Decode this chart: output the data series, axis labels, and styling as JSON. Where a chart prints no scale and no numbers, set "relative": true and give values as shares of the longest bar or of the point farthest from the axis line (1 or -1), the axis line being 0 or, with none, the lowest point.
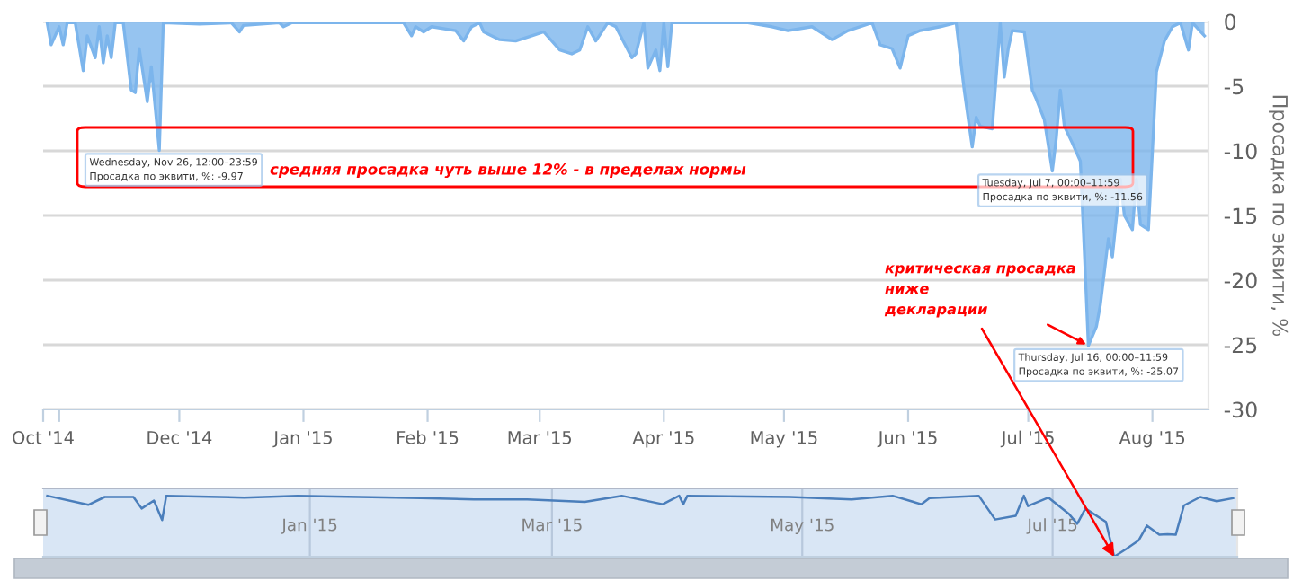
{
  "chart_data": [
    {
      "type": "area",
      "ylabel": "Просадка по эквити, %",
      "xlim": [
        "2014-10-28",
        "2015-08-15"
      ],
      "ylim": [
        -30,
        0
      ],
      "yticks": [
        0,
        -5,
        -10,
        -15,
        -20,
        -25,
        -30
      ],
      "xticks": [
        {
          "value": "2014-10-28",
          "label": "Oct '14"
        },
        {
          "value": "2014-11-01",
          "label": null
        },
        {
          "value": "2014-12-01",
          "label": "Dec '14"
        },
        {
          "value": "2015-01-01",
          "label": "Jan '15"
        },
        {
          "value": "2015-02-01",
          "label": "Feb '15"
        },
        {
          "value": "2015-03-01",
          "label": "Mar '15"
        },
        {
          "value": "2015-04-01",
          "label": "Apr '15"
        },
        {
          "value": "2015-05-01",
          "label": "May '15"
        },
        {
          "value": "2015-06-01",
          "label": "Jun '15"
        },
        {
          "value": "2015-07-01",
          "label": "Jul '15"
        },
        {
          "value": "2015-08-01",
          "label": "Aug '15"
        }
      ],
      "grid": "y",
      "x": [
        "2014-10-29",
        "2014-10-30",
        "2014-11-01",
        "2014-11-02",
        "2014-11-03",
        "2014-11-05",
        "2014-11-07",
        "2014-11-08",
        "2014-11-10",
        "2014-11-11",
        "2014-11-12",
        "2014-11-13",
        "2014-11-14",
        "2014-11-15",
        "2014-11-17",
        "2014-11-19",
        "2014-11-20",
        "2014-11-21",
        "2014-11-23",
        "2014-11-24",
        "2014-11-25",
        "2014-11-26",
        "2014-11-27",
        "2014-12-06",
        "2014-12-14",
        "2014-12-16",
        "2014-12-17",
        "2014-12-26",
        "2014-12-27",
        "2014-12-29",
        "2015-01-26",
        "2015-01-28",
        "2015-01-29",
        "2015-01-31",
        "2015-02-02",
        "2015-02-08",
        "2015-02-10",
        "2015-02-12",
        "2015-02-14",
        "2015-02-15",
        "2015-02-19",
        "2015-02-23",
        "2015-02-27",
        "2015-03-02",
        "2015-03-06",
        "2015-03-09",
        "2015-03-11",
        "2015-03-13",
        "2015-03-15",
        "2015-03-18",
        "2015-03-20",
        "2015-03-24",
        "2015-03-25",
        "2015-03-27",
        "2015-03-28",
        "2015-03-30",
        "2015-03-31",
        "2015-04-01",
        "2015-04-02",
        "2015-04-03",
        "2015-04-14",
        "2015-04-22",
        "2015-04-28",
        "2015-05-02",
        "2015-05-08",
        "2015-05-13",
        "2015-05-17",
        "2015-05-23",
        "2015-05-25",
        "2015-05-28",
        "2015-05-30",
        "2015-06-01",
        "2015-06-04",
        "2015-06-09",
        "2015-06-13",
        "2015-06-15",
        "2015-06-17",
        "2015-06-18",
        "2015-06-19",
        "2015-06-22",
        "2015-06-24",
        "2015-06-25",
        "2015-06-26",
        "2015-06-27",
        "2015-06-30",
        "2015-07-02",
        "2015-07-03",
        "2015-07-05",
        "2015-07-07",
        "2015-07-08",
        "2015-07-09",
        "2015-07-10",
        "2015-07-12",
        "2015-07-14",
        "2015-07-15",
        "2015-07-16",
        "2015-07-18",
        "2015-07-19",
        "2015-07-21",
        "2015-07-22",
        "2015-07-24",
        "2015-07-25",
        "2015-07-27",
        "2015-07-28",
        "2015-07-29",
        "2015-07-31",
        "2015-08-02",
        "2015-08-04",
        "2015-08-06",
        "2015-08-08",
        "2015-08-10",
        "2015-08-11",
        "2015-08-14"
      ],
      "series": [
        {
          "color": "#7cb5ec",
          "values": [
            -0.1,
            -1.8,
            -0.4,
            -1.8,
            -0.1,
            -0.1,
            -3.8,
            -1.1,
            -2.8,
            -0.4,
            -3.2,
            -1.1,
            -2.8,
            -0.1,
            -0.1,
            -5.3,
            -5.5,
            -2.1,
            -6.2,
            -3.5,
            -6.7,
            -9.97,
            -0.1,
            -0.2,
            -0.1,
            -0.8,
            -0.3,
            -0.1,
            -0.4,
            -0.1,
            -0.1,
            -1.1,
            -0.4,
            -0.8,
            -0.4,
            -0.7,
            -1.5,
            -0.4,
            -0.1,
            -0.8,
            -1.4,
            -1.5,
            -1.1,
            -0.8,
            -2.2,
            -2.5,
            -2.2,
            -0.4,
            -1.5,
            -0.1,
            -0.4,
            -2.8,
            -2.5,
            -0.1,
            -3.6,
            -2.2,
            -3.8,
            -0.1,
            -3.5,
            -0.1,
            -0.1,
            -0.1,
            -0.4,
            -0.7,
            -0.4,
            -1.4,
            -0.7,
            -0.1,
            -1.8,
            -2.1,
            -3.6,
            -1.1,
            -0.7,
            -0.4,
            -0.1,
            -5.3,
            -9.7,
            -7.4,
            -8.1,
            -8.3,
            -0.1,
            -4.3,
            -2.1,
            -0.7,
            -0.8,
            -5.3,
            -6.0,
            -7.6,
            -11.56,
            -9.0,
            -5.3,
            -8.1,
            -9.4,
            -10.8,
            -17.8,
            -25.07,
            -23.6,
            -21.9,
            -16.8,
            -18.2,
            -12.2,
            -15.0,
            -16.1,
            -12.2,
            -15.7,
            -16.1,
            -3.9,
            -1.5,
            -0.4,
            -0.1,
            -2.2,
            -0.1,
            -1.1
          ]
        }
      ],
      "annotations": [
        "средняя просадка чуть выше 12% - в пределах нормы",
        {
          "text": "Wednesday, Nov 26, 12:00–23:59\nПросадка по эквити, %: -9.97",
          "x": "2014-11-26",
          "y": -9.97
        },
        {
          "text": "Tuesday, Jul 7, 00:00–11:59\nПросадка по эквити, %: -11.56",
          "x": "2015-07-07",
          "y": -11.56
        },
        {
          "text": "Thursday, Jul 16, 00:00–11:59\nПросадка по эквити, %: -25.07",
          "x": "2015-07-16",
          "y": -25.07
        },
        {
          "text": "критическая просадка\nниже\nдекларации",
          "x": "2015-07-16",
          "y": -25.07
        }
      ]
    },
    {
      "type": "line",
      "relative": true,
      "tick_labels": "x",
      "grid": "x",
      "xlim": [
        "2014-10-28",
        "2015-08-15"
      ],
      "xticks": [
        {
          "value": "2015-01-01",
          "label": "Jan '15"
        },
        {
          "value": "2015-03-01",
          "label": "Mar '15"
        },
        {
          "value": "2015-05-01",
          "label": "May '15"
        },
        {
          "value": "2015-07-01",
          "label": "Jul '15"
        }
      ],
      "x": [
        "2014-10-29",
        "2014-11-08",
        "2014-11-12",
        "2014-11-19",
        "2014-11-21",
        "2014-11-24",
        "2014-11-26",
        "2014-11-27",
        "2014-12-16",
        "2014-12-29",
        "2015-01-28",
        "2015-02-10",
        "2015-02-23",
        "2015-03-09",
        "2015-03-18",
        "2015-03-28",
        "2015-04-01",
        "2015-04-02",
        "2015-04-03",
        "2015-04-28",
        "2015-05-13",
        "2015-05-23",
        "2015-05-30",
        "2015-06-01",
        "2015-06-13",
        "2015-06-17",
        "2015-06-22",
        "2015-06-24",
        "2015-06-25",
        "2015-06-30",
        "2015-07-05",
        "2015-07-07",
        "2015-07-09",
        "2015-07-14",
        "2015-07-16",
        "2015-07-19",
        "2015-07-22",
        "2015-07-24",
        "2015-07-27",
        "2015-07-29",
        "2015-07-31",
        "2015-08-02",
        "2015-08-06",
        "2015-08-10",
        "2015-08-14"
      ],
      "series": [
        {
          "color": "#4a7ebb",
          "values": [
            1,
            0.85,
            0.98,
            0.98,
            0.79,
            0.92,
            0.6,
            1,
            0.97,
            1,
            0.96,
            0.94,
            0.94,
            0.9,
            1,
            0.86,
            1,
            0.86,
            1,
            0.98,
            0.94,
            1,
            0.86,
            0.96,
            1,
            0.61,
            0.67,
            1,
            0.83,
            0.97,
            0.7,
            0.54,
            0.79,
            0.57,
            0,
            0.13,
            0.27,
            0.51,
            0.36,
            0.37,
            0.36,
            0.84,
            0.98,
            0.91,
            0.96
          ]
        }
      ]
    }
  ]
}
